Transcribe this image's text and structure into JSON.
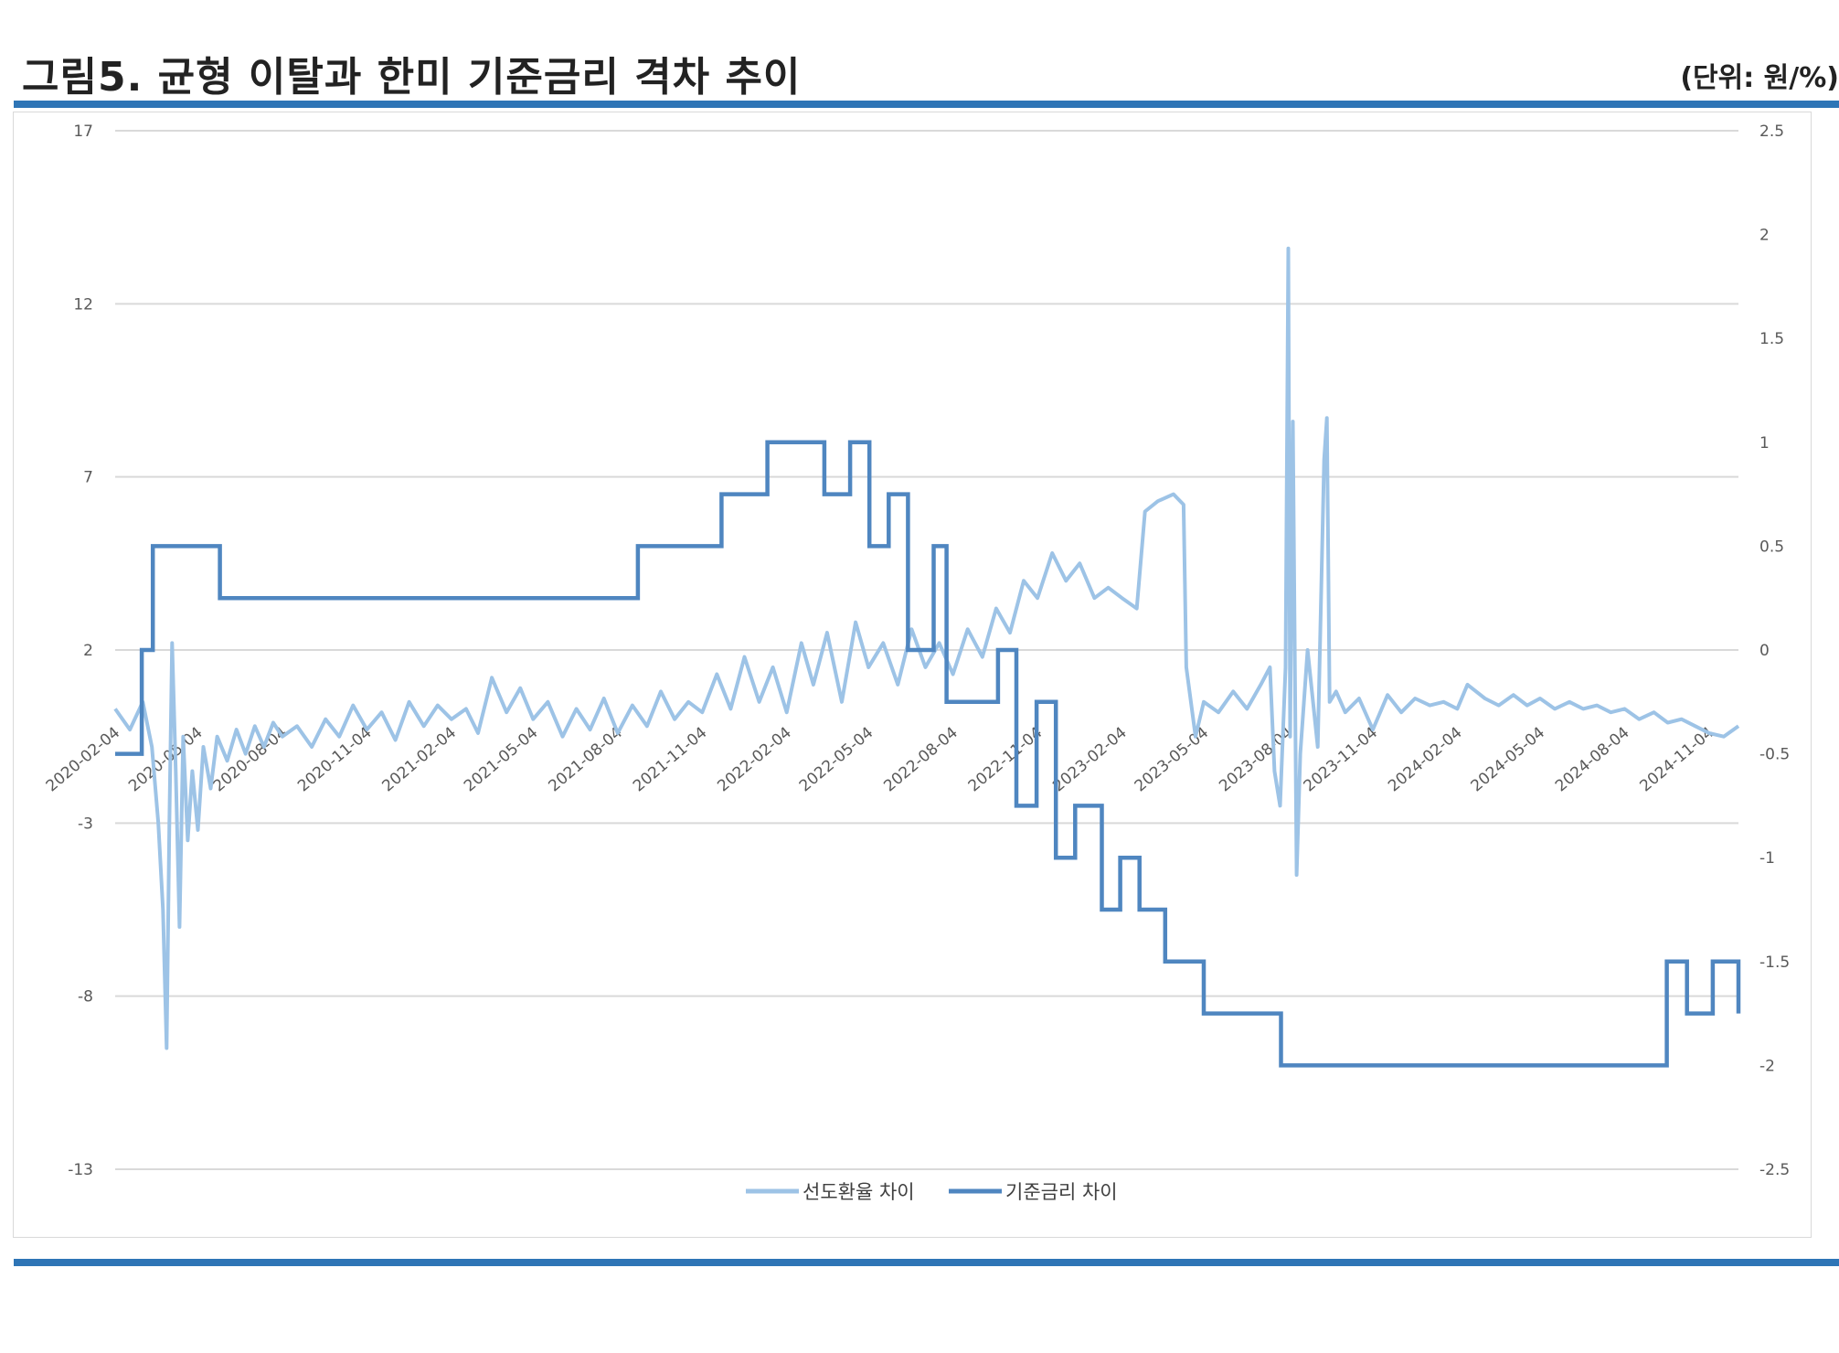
{
  "header": {
    "title": "그림5. 균형 이탈과 한미 기준금리 격차 추이",
    "unit": "(단위: 원/%)"
  },
  "colors": {
    "rule": "#2e75b6",
    "forward_series": "#9dc3e6",
    "rate_series": "#4f86c0",
    "grid": "#d9d9d9"
  },
  "chart_data": {
    "type": "line",
    "title": "",
    "xlabel": "",
    "ylabel": "",
    "x_ticks": [
      "2020-02-04",
      "2020-05-04",
      "2020-08-04",
      "2020-11-04",
      "2021-02-04",
      "2021-05-04",
      "2021-08-04",
      "2021-11-04",
      "2022-02-04",
      "2022-05-04",
      "2022-08-04",
      "2022-11-04",
      "2023-02-04",
      "2023-05-04",
      "2023-08-04",
      "2023-11-04",
      "2024-02-04",
      "2024-05-04",
      "2024-08-04",
      "2024-11-04"
    ],
    "x_range": [
      "2020-02-04",
      "2024-12-06"
    ],
    "y_left": {
      "ticks": [
        "17",
        "12",
        "7",
        "2",
        "-3",
        "-8",
        "-13"
      ],
      "range": [
        -13,
        17
      ]
    },
    "y_right": {
      "ticks": [
        "2.5",
        "2",
        "1.5",
        "1",
        "0.5",
        "0",
        "-0.5",
        "-1",
        "-1.5",
        "-2",
        "-2.5"
      ],
      "range": [
        -2.5,
        2.5
      ]
    },
    "grid": "horizontal",
    "legend_position": "bottom",
    "series": [
      {
        "name": "선도환율 차이",
        "axis": "left",
        "points": [
          [
            "2020-02-04",
            0.3
          ],
          [
            "2020-02-20",
            -0.3
          ],
          [
            "2020-03-05",
            0.5
          ],
          [
            "2020-03-15",
            -0.8
          ],
          [
            "2020-03-22",
            -3.0
          ],
          [
            "2020-03-27",
            -5.5
          ],
          [
            "2020-03-31",
            -9.5
          ],
          [
            "2020-04-03",
            -3.0
          ],
          [
            "2020-04-06",
            2.2
          ],
          [
            "2020-04-10",
            -1.5
          ],
          [
            "2020-04-14",
            -6.0
          ],
          [
            "2020-04-18",
            -0.5
          ],
          [
            "2020-04-23",
            -3.5
          ],
          [
            "2020-04-28",
            -1.5
          ],
          [
            "2020-05-04",
            -3.2
          ],
          [
            "2020-05-10",
            -0.8
          ],
          [
            "2020-05-18",
            -2.0
          ],
          [
            "2020-05-25",
            -0.5
          ],
          [
            "2020-06-05",
            -1.2
          ],
          [
            "2020-06-15",
            -0.3
          ],
          [
            "2020-06-25",
            -1.0
          ],
          [
            "2020-07-05",
            -0.2
          ],
          [
            "2020-07-15",
            -0.8
          ],
          [
            "2020-07-25",
            -0.1
          ],
          [
            "2020-08-04",
            -0.5
          ],
          [
            "2020-08-20",
            -0.2
          ],
          [
            "2020-09-05",
            -0.8
          ],
          [
            "2020-09-20",
            0.0
          ],
          [
            "2020-10-05",
            -0.5
          ],
          [
            "2020-10-20",
            0.4
          ],
          [
            "2020-11-04",
            -0.3
          ],
          [
            "2020-11-20",
            0.2
          ],
          [
            "2020-12-05",
            -0.6
          ],
          [
            "2020-12-20",
            0.5
          ],
          [
            "2021-01-05",
            -0.2
          ],
          [
            "2021-01-20",
            0.4
          ],
          [
            "2021-02-04",
            0.0
          ],
          [
            "2021-02-20",
            0.3
          ],
          [
            "2021-03-05",
            -0.4
          ],
          [
            "2021-03-20",
            1.2
          ],
          [
            "2021-04-05",
            0.2
          ],
          [
            "2021-04-20",
            0.9
          ],
          [
            "2021-05-04",
            0.0
          ],
          [
            "2021-05-20",
            0.5
          ],
          [
            "2021-06-05",
            -0.5
          ],
          [
            "2021-06-20",
            0.3
          ],
          [
            "2021-07-05",
            -0.3
          ],
          [
            "2021-07-20",
            0.6
          ],
          [
            "2021-08-04",
            -0.4
          ],
          [
            "2021-08-20",
            0.4
          ],
          [
            "2021-09-05",
            -0.2
          ],
          [
            "2021-09-20",
            0.8
          ],
          [
            "2021-10-05",
            0.0
          ],
          [
            "2021-10-20",
            0.5
          ],
          [
            "2021-11-04",
            0.2
          ],
          [
            "2021-11-20",
            1.3
          ],
          [
            "2021-12-05",
            0.3
          ],
          [
            "2021-12-20",
            1.8
          ],
          [
            "2022-01-05",
            0.5
          ],
          [
            "2022-01-20",
            1.5
          ],
          [
            "2022-02-04",
            0.2
          ],
          [
            "2022-02-20",
            2.2
          ],
          [
            "2022-03-05",
            1.0
          ],
          [
            "2022-03-20",
            2.5
          ],
          [
            "2022-04-05",
            0.5
          ],
          [
            "2022-04-20",
            2.8
          ],
          [
            "2022-05-04",
            1.5
          ],
          [
            "2022-05-20",
            2.2
          ],
          [
            "2022-06-05",
            1.0
          ],
          [
            "2022-06-20",
            2.6
          ],
          [
            "2022-07-05",
            1.5
          ],
          [
            "2022-07-20",
            2.2
          ],
          [
            "2022-08-04",
            1.3
          ],
          [
            "2022-08-20",
            2.6
          ],
          [
            "2022-09-05",
            1.8
          ],
          [
            "2022-09-20",
            3.2
          ],
          [
            "2022-10-05",
            2.5
          ],
          [
            "2022-10-20",
            4.0
          ],
          [
            "2022-11-04",
            3.5
          ],
          [
            "2022-11-20",
            4.8
          ],
          [
            "2022-12-05",
            4.0
          ],
          [
            "2022-12-20",
            4.5
          ],
          [
            "2023-01-05",
            3.5
          ],
          [
            "2023-01-20",
            3.8
          ],
          [
            "2023-02-04",
            3.5
          ],
          [
            "2023-02-20",
            3.2
          ],
          [
            "2023-03-01",
            6.0
          ],
          [
            "2023-03-15",
            6.3
          ],
          [
            "2023-04-01",
            6.5
          ],
          [
            "2023-04-12",
            6.2
          ],
          [
            "2023-04-15",
            1.5
          ],
          [
            "2023-04-25",
            -0.5
          ],
          [
            "2023-05-04",
            0.5
          ],
          [
            "2023-05-20",
            0.2
          ],
          [
            "2023-06-05",
            0.8
          ],
          [
            "2023-06-20",
            0.3
          ],
          [
            "2023-07-05",
            1.0
          ],
          [
            "2023-07-15",
            1.5
          ],
          [
            "2023-07-20",
            -1.5
          ],
          [
            "2023-07-26",
            -2.5
          ],
          [
            "2023-08-01",
            1.5
          ],
          [
            "2023-08-04",
            13.6
          ],
          [
            "2023-08-06",
            -0.5
          ],
          [
            "2023-08-09",
            8.6
          ],
          [
            "2023-08-13",
            -4.5
          ],
          [
            "2023-08-17",
            -1.0
          ],
          [
            "2023-08-25",
            2.0
          ],
          [
            "2023-09-05",
            -0.8
          ],
          [
            "2023-09-12",
            7.5
          ],
          [
            "2023-09-15",
            8.7
          ],
          [
            "2023-09-18",
            0.5
          ],
          [
            "2023-09-25",
            0.8
          ],
          [
            "2023-10-05",
            0.2
          ],
          [
            "2023-10-20",
            0.6
          ],
          [
            "2023-11-04",
            -0.3
          ],
          [
            "2023-11-20",
            0.7
          ],
          [
            "2023-12-05",
            0.2
          ],
          [
            "2023-12-20",
            0.6
          ],
          [
            "2024-01-05",
            0.4
          ],
          [
            "2024-01-20",
            0.5
          ],
          [
            "2024-02-04",
            0.3
          ],
          [
            "2024-02-15",
            1.0
          ],
          [
            "2024-03-05",
            0.6
          ],
          [
            "2024-03-20",
            0.4
          ],
          [
            "2024-04-05",
            0.7
          ],
          [
            "2024-04-20",
            0.4
          ],
          [
            "2024-05-04",
            0.6
          ],
          [
            "2024-05-20",
            0.3
          ],
          [
            "2024-06-05",
            0.5
          ],
          [
            "2024-06-20",
            0.3
          ],
          [
            "2024-07-05",
            0.4
          ],
          [
            "2024-07-20",
            0.2
          ],
          [
            "2024-08-04",
            0.3
          ],
          [
            "2024-08-20",
            0.0
          ],
          [
            "2024-09-05",
            0.2
          ],
          [
            "2024-09-20",
            -0.1
          ],
          [
            "2024-10-05",
            0.0
          ],
          [
            "2024-10-20",
            -0.2
          ],
          [
            "2024-11-04",
            -0.4
          ],
          [
            "2024-11-20",
            -0.5
          ],
          [
            "2024-12-06",
            -0.2
          ]
        ]
      },
      {
        "name": "기준금리 차이",
        "axis": "right",
        "steps": [
          [
            "2020-02-04",
            -0.5
          ],
          [
            "2020-03-04",
            0.0
          ],
          [
            "2020-03-16",
            0.5
          ],
          [
            "2020-05-28",
            0.25
          ],
          [
            "2021-08-26",
            0.5
          ],
          [
            "2021-11-25",
            0.75
          ],
          [
            "2022-01-14",
            1.0
          ],
          [
            "2022-03-17",
            0.75
          ],
          [
            "2022-04-14",
            1.0
          ],
          [
            "2022-05-05",
            0.5
          ],
          [
            "2022-05-26",
            0.75
          ],
          [
            "2022-06-16",
            0.0
          ],
          [
            "2022-07-14",
            0.5
          ],
          [
            "2022-07-28",
            -0.25
          ],
          [
            "2022-09-22",
            0.0
          ],
          [
            "2022-10-12",
            -0.75
          ],
          [
            "2022-11-03",
            -0.25
          ],
          [
            "2022-11-24",
            -1.0
          ],
          [
            "2022-12-15",
            -0.75
          ],
          [
            "2023-01-13",
            -1.25
          ],
          [
            "2023-02-02",
            -1.0
          ],
          [
            "2023-02-23",
            -1.25
          ],
          [
            "2023-03-23",
            -1.5
          ],
          [
            "2023-05-04",
            -1.75
          ],
          [
            "2023-07-27",
            -2.0
          ],
          [
            "2024-09-19",
            -1.5
          ],
          [
            "2024-10-11",
            -1.75
          ],
          [
            "2024-11-08",
            -1.5
          ],
          [
            "2024-12-06",
            -1.75
          ]
        ]
      }
    ]
  }
}
